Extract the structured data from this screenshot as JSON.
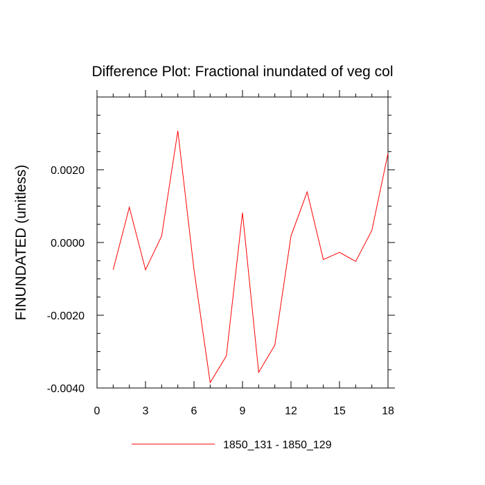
{
  "chart_data": {
    "type": "line",
    "title": "Difference Plot: Fractional inundated of veg col",
    "xlabel": "",
    "ylabel": "FINUNDATED  (unitless)",
    "xlim": [
      0,
      18
    ],
    "ylim": [
      -0.004,
      0.004
    ],
    "x_major_ticks": [
      0,
      3,
      6,
      9,
      12,
      15,
      18
    ],
    "x_tick_labels": [
      "0",
      "3",
      "6",
      "9",
      "12",
      "15",
      "18"
    ],
    "x_minor_ticks": [
      1,
      2,
      4,
      5,
      7,
      8,
      10,
      11,
      13,
      14,
      16,
      17
    ],
    "y_major_ticks": [
      -0.004,
      -0.002,
      0.0,
      0.002
    ],
    "y_tick_labels": [
      "-0.0040",
      "-0.0020",
      "0.0000",
      "0.0020"
    ],
    "y_minor_step": 0.0005,
    "grid": false,
    "legend_position": "bottom",
    "series": [
      {
        "name": "1850_131 - 1850_129",
        "color": "#ff0000",
        "x": [
          1,
          2,
          3,
          4,
          5,
          6,
          7,
          8,
          9,
          10,
          11,
          12,
          13,
          14,
          15,
          16,
          17,
          18
        ],
        "values": [
          -0.00075,
          0.00097,
          -0.00075,
          0.00018,
          0.00307,
          -0.00075,
          -0.00385,
          -0.00312,
          0.00082,
          -0.00357,
          -0.00282,
          0.00018,
          0.00139,
          -0.00047,
          -0.00027,
          -0.00052,
          0.00033,
          0.00245
        ]
      }
    ]
  }
}
